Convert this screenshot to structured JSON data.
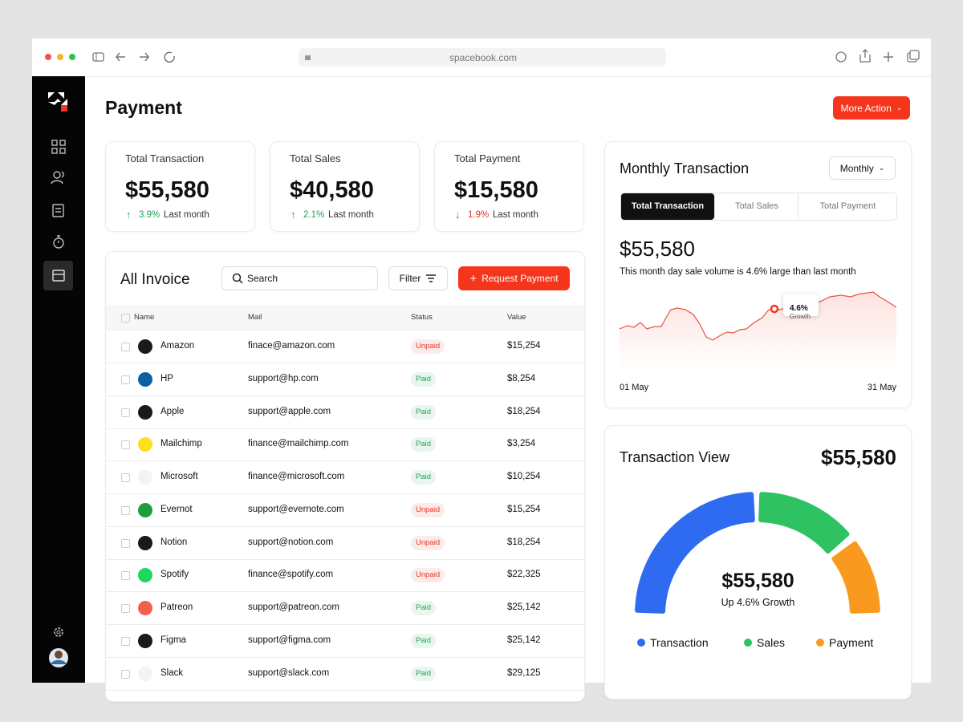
{
  "browser": {
    "url": "spacebook.com"
  },
  "page": {
    "title": "Payment",
    "action": "More Action"
  },
  "stats": [
    {
      "label": "Total Transaction",
      "value": "$55,580",
      "change": "3.9%",
      "period": "Last month",
      "direction": "up",
      "color": "#1fa45a"
    },
    {
      "label": "Total Sales",
      "value": "$40,580",
      "change": "2.1%",
      "period": "Last month",
      "direction": "up",
      "color": "#1fa45a"
    },
    {
      "label": "Total Payment",
      "value": "$15,580",
      "change": "1.9%",
      "period": "Last month",
      "direction": "down",
      "color": "#e5372a"
    }
  ],
  "invoice": {
    "title": "All Invoice",
    "search": "Search",
    "filter": "Filter",
    "request": "Request Payment",
    "columns": [
      "Name",
      "Mail",
      "Status",
      "Value"
    ],
    "status_styles": {
      "Paid": "#1fa45a",
      "Unpaid": "#e5372a"
    },
    "rows": [
      {
        "name": "Amazon",
        "mail": "finace@amazon.com",
        "status": "Unpaid",
        "value": "$15,254"
      },
      {
        "name": "HP",
        "mail": "support@hp.com",
        "status": "Paid",
        "value": "$8,254"
      },
      {
        "name": "Apple",
        "mail": "support@apple.com",
        "status": "Paid",
        "value": "$18,254"
      },
      {
        "name": "Mailchimp",
        "mail": "finance@mailchimp.com",
        "status": "Paid",
        "value": "$3,254"
      },
      {
        "name": "Microsoft",
        "mail": "finance@microsoft.com",
        "status": "Paid",
        "value": "$10,254"
      },
      {
        "name": "Evernot",
        "mail": "support@evernote.com",
        "status": "Unpaid",
        "value": "$15,254"
      },
      {
        "name": "Notion",
        "mail": "support@notion.com",
        "status": "Unpaid",
        "value": "$18,254"
      },
      {
        "name": "Spotify",
        "mail": "finance@spotify.com",
        "status": "Unpaid",
        "value": "$22,325"
      },
      {
        "name": "Patreon",
        "mail": "support@patreon.com",
        "status": "Paid",
        "value": "$25,142"
      },
      {
        "name": "Figma",
        "mail": "support@figma.com",
        "status": "Paid",
        "value": "$25,142"
      },
      {
        "name": "Slack",
        "mail": "support@slack.com",
        "status": "Paid",
        "value": "$29,125"
      }
    ]
  },
  "monthly": {
    "title": "Monthly Transaction",
    "period": "Monthly",
    "tabs": [
      "Total Transaction",
      "Total Sales",
      "Total Payment"
    ],
    "amount": "$55,580",
    "note": "This month day sale volume is 4.6% large than last month",
    "badge": {
      "value": "4.6%",
      "label": "Growth"
    },
    "start": "01 May",
    "end": "31 May"
  },
  "view": {
    "title": "Transaction View",
    "amount": "$55,580",
    "center": "$55,580",
    "growth": "Up 4.6% Growth",
    "legend": [
      {
        "name": "Transaction",
        "color": "#2f6bf0"
      },
      {
        "name": "Sales",
        "color": "#2ec262"
      },
      {
        "name": "Payment",
        "color": "#f99a1f"
      }
    ]
  }
}
